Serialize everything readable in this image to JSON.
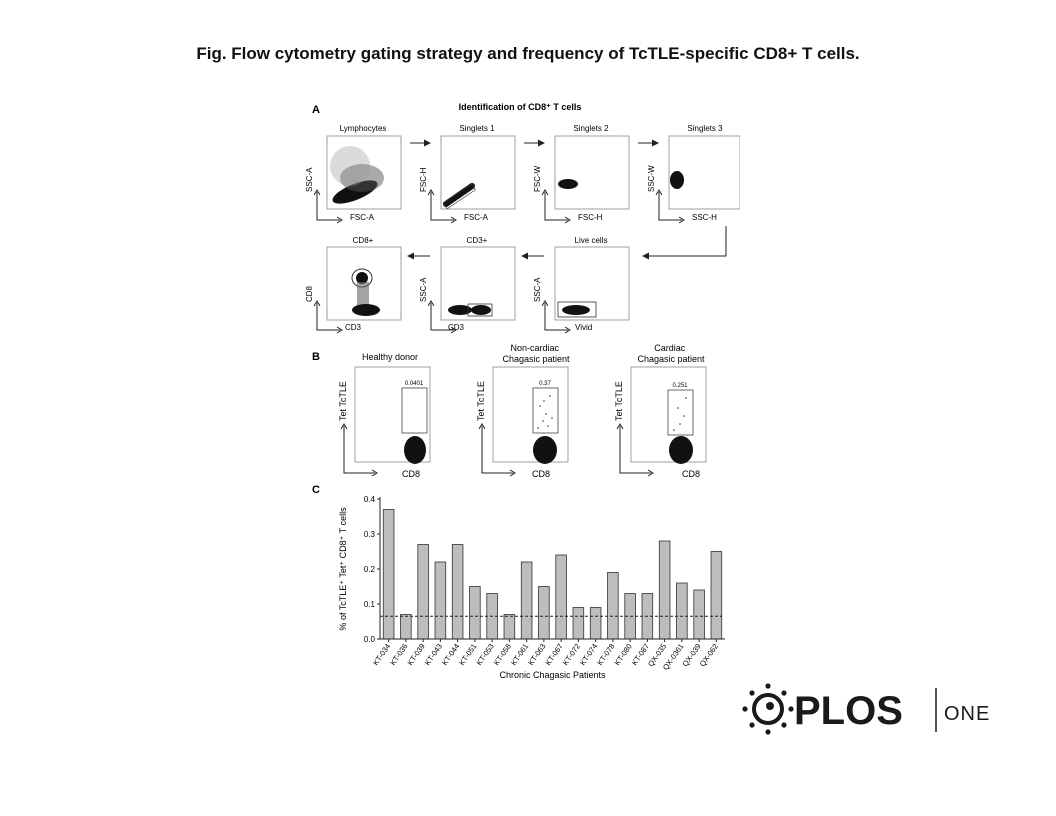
{
  "title": "Fig. Flow cytometry gating strategy and frequency of TcTLE-specific CD8+ T cells.",
  "panel_a": {
    "letter": "A",
    "heading": "Identification of CD8⁺ T cells",
    "plots": [
      {
        "name": "Lymphocytes",
        "x": "FSC-A",
        "y": "SSC-A"
      },
      {
        "name": "Singlets 1",
        "x": "FSC-A",
        "y": "FSC-H"
      },
      {
        "name": "Singlets 2",
        "x": "FSC-H",
        "y": "FSC-W"
      },
      {
        "name": "Singlets 3",
        "x": "SSC-H",
        "y": "SSC-W"
      },
      {
        "name": "CD8+",
        "x": "CD3",
        "y": "CD8"
      },
      {
        "name": "CD3+",
        "x": "CD3",
        "y": "SSC-A"
      },
      {
        "name": "Live cells",
        "x": "Vivid",
        "y": "SSC-A"
      }
    ]
  },
  "panel_b": {
    "letter": "B",
    "plots": [
      {
        "title": "Healthy donor",
        "value": "0.0401",
        "x": "CD8",
        "y": "Tet TcTLE"
      },
      {
        "title": "Non-cardiac\nChagasic patient",
        "value": "0.37",
        "x": "CD8",
        "y": "Tet TcTLE"
      },
      {
        "title": "Cardiac\nChagasic patient",
        "value": "0.251",
        "x": "CD8",
        "y": "Tet TcTLE"
      }
    ]
  },
  "chart_data": {
    "type": "bar",
    "panel_letter": "C",
    "categories": [
      "KT-034",
      "KT-036",
      "KT-039",
      "KT-043",
      "KT-044",
      "KT-051",
      "KT-053",
      "KT-058",
      "KT-061",
      "KT-063",
      "KT-067",
      "KT-072",
      "KT-074",
      "KT-078",
      "KT-080",
      "KT-087",
      "QX-035",
      "QX-0361",
      "QX-039",
      "QX-062"
    ],
    "values": [
      0.37,
      0.07,
      0.27,
      0.22,
      0.27,
      0.15,
      0.13,
      0.07,
      0.22,
      0.15,
      0.24,
      0.09,
      0.09,
      0.19,
      0.13,
      0.13,
      0.28,
      0.16,
      0.14,
      0.25
    ],
    "ylim": [
      0,
      0.4
    ],
    "yticks": [
      "0.0",
      "0.1",
      "0.2",
      "0.3",
      "0.4"
    ],
    "threshold": 0.065,
    "xlabel": "Chronic Chagasic Patients",
    "ylabel": "% of TcTLE⁺ Tet⁺ CD8⁺ T cells",
    "bar_color": "#bdbdbd"
  },
  "logo": {
    "brand": "PLOS",
    "suffix": "ONE"
  }
}
